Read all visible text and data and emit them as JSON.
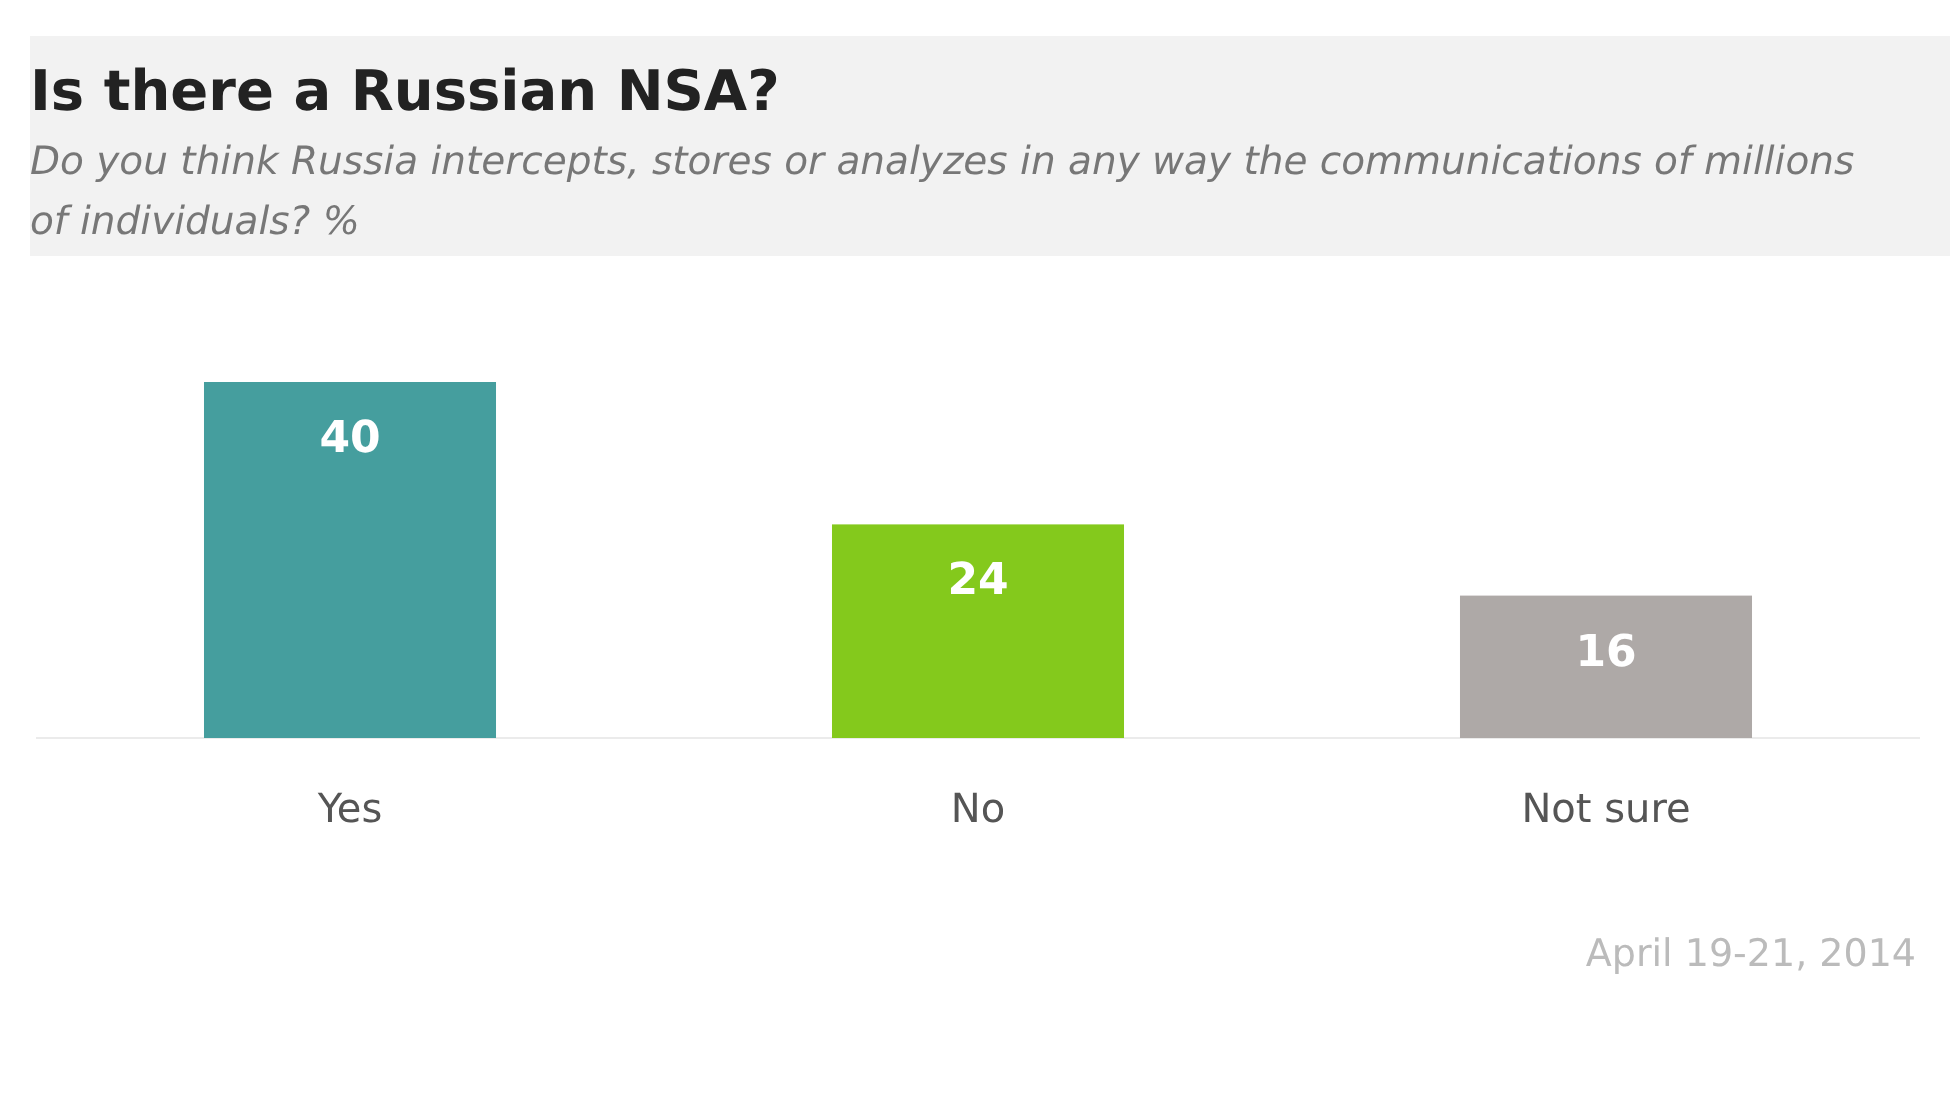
{
  "chart_data": {
    "type": "bar",
    "title": "Is there a Russian NSA?",
    "subtitle": "Do you think Russia intercepts, stores or analyzes in any way the communications of millions of individuals? %",
    "categories": [
      "Yes",
      "No",
      "Not sure"
    ],
    "values": [
      40,
      24,
      16
    ],
    "colors": [
      "#459e9e",
      "#84c91c",
      "#aea9a7"
    ],
    "data_labels": true,
    "annotations": [
      "April 19-21, 2014"
    ]
  }
}
